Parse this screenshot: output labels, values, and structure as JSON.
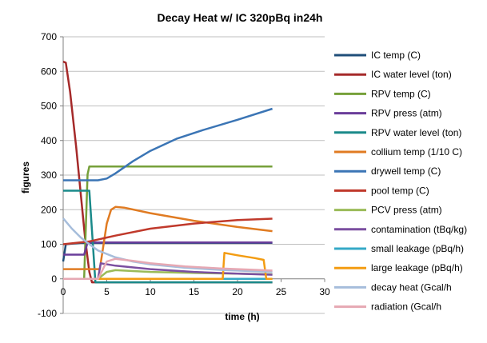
{
  "chart_data": {
    "type": "line",
    "title": "Decay Heat w/ IC   320pBq in24h",
    "xlabel": "time (h)",
    "ylabel": "figures",
    "xlim": [
      0,
      30
    ],
    "ylim": [
      -100,
      700
    ],
    "xticks": [
      "0",
      "5",
      "10",
      "15",
      "20",
      "25",
      "30"
    ],
    "yticks": [
      "-100",
      "0",
      "100",
      "200",
      "300",
      "400",
      "500",
      "600",
      "700"
    ],
    "xtick_values": [
      0,
      5,
      10,
      15,
      20,
      25,
      30
    ],
    "ytick_values": [
      -100,
      0,
      100,
      200,
      300,
      400,
      500,
      600,
      700
    ],
    "grid": "horizontal major",
    "legend_position": "right",
    "series": [
      {
        "name": "IC temp (C)",
        "color": "#1f4e79",
        "points": [
          [
            0,
            50
          ],
          [
            0.3,
            100
          ],
          [
            2,
            104
          ],
          [
            5,
            104
          ],
          [
            10,
            104
          ],
          [
            15,
            104
          ],
          [
            20,
            104
          ],
          [
            24,
            104
          ]
        ]
      },
      {
        "name": "IC water level (ton)",
        "color": "#a52a2a",
        "points": [
          [
            0,
            628
          ],
          [
            0.3,
            625
          ],
          [
            0.8,
            540
          ],
          [
            1.5,
            380
          ],
          [
            2,
            250
          ],
          [
            2.5,
            120
          ],
          [
            3,
            20
          ],
          [
            3.3,
            -10
          ],
          [
            24,
            -10
          ]
        ]
      },
      {
        "name": "RPV temp (C)",
        "color": "#76a03a",
        "points": [
          [
            0,
            0
          ],
          [
            2.4,
            0
          ],
          [
            2.8,
            302
          ],
          [
            3,
            325
          ],
          [
            10,
            325
          ],
          [
            20,
            325
          ],
          [
            24,
            325
          ]
        ]
      },
      {
        "name": "RPV press (atm)",
        "color": "#6a3d9a",
        "points": [
          [
            0,
            70
          ],
          [
            2.4,
            70
          ],
          [
            2.8,
            105
          ],
          [
            3,
            105
          ],
          [
            24,
            105
          ]
        ]
      },
      {
        "name": "RPV water level (ton)",
        "color": "#1a8a8a",
        "points": [
          [
            0,
            255
          ],
          [
            3,
            255
          ],
          [
            3.7,
            -10
          ],
          [
            24,
            -10
          ]
        ]
      },
      {
        "name": "collium temp (1/10 C)",
        "color": "#e07b22",
        "points": [
          [
            0,
            28
          ],
          [
            3,
            28
          ],
          [
            4.2,
            28
          ],
          [
            5,
            160
          ],
          [
            5.5,
            200
          ],
          [
            6,
            208
          ],
          [
            7,
            206
          ],
          [
            10,
            190
          ],
          [
            15,
            168
          ],
          [
            20,
            150
          ],
          [
            24,
            138
          ]
        ]
      },
      {
        "name": "drywell temp (C)",
        "color": "#3b75b5",
        "points": [
          [
            0,
            285
          ],
          [
            4,
            285
          ],
          [
            5,
            290
          ],
          [
            6,
            305
          ],
          [
            8,
            340
          ],
          [
            10,
            370
          ],
          [
            13,
            405
          ],
          [
            16,
            430
          ],
          [
            20,
            460
          ],
          [
            24,
            492
          ]
        ]
      },
      {
        "name": "pool temp (C)",
        "color": "#c0392b",
        "points": [
          [
            0,
            100
          ],
          [
            3,
            108
          ],
          [
            6,
            125
          ],
          [
            10,
            145
          ],
          [
            15,
            160
          ],
          [
            20,
            170
          ],
          [
            24,
            174
          ]
        ]
      },
      {
        "name": "PCV press (atm)",
        "color": "#9bbb59",
        "points": [
          [
            0,
            0
          ],
          [
            4,
            0
          ],
          [
            5,
            20
          ],
          [
            6,
            25
          ],
          [
            10,
            20
          ],
          [
            15,
            17
          ],
          [
            20,
            15
          ],
          [
            24,
            13
          ]
        ]
      },
      {
        "name": "contamination (tBq/kg)",
        "color": "#7b4fa0",
        "points": [
          [
            0,
            0
          ],
          [
            4,
            0
          ],
          [
            4.3,
            45
          ],
          [
            6,
            38
          ],
          [
            10,
            28
          ],
          [
            15,
            20
          ],
          [
            20,
            15
          ],
          [
            24,
            12
          ]
        ]
      },
      {
        "name": "small leakage (pBq/h)",
        "color": "#35a9c7",
        "points": [
          [
            0,
            0
          ],
          [
            24,
            0
          ]
        ]
      },
      {
        "name": "large leakage (pBq/h)",
        "color": "#f39c12",
        "points": [
          [
            0,
            0
          ],
          [
            18.3,
            0
          ],
          [
            18.5,
            75
          ],
          [
            20,
            68
          ],
          [
            22,
            60
          ],
          [
            23,
            55
          ],
          [
            23.3,
            0
          ],
          [
            24,
            0
          ]
        ]
      },
      {
        "name": "decay heat (Gcal/h",
        "color": "#a6bddb",
        "points": [
          [
            0,
            175
          ],
          [
            1,
            145
          ],
          [
            2,
            120
          ],
          [
            3,
            100
          ],
          [
            4,
            82
          ],
          [
            6,
            62
          ],
          [
            8,
            50
          ],
          [
            10,
            42
          ],
          [
            14,
            32
          ],
          [
            18,
            26
          ],
          [
            24,
            20
          ]
        ]
      },
      {
        "name": "radiation (Gcal/h",
        "color": "#e6a8b3",
        "points": [
          [
            0,
            0
          ],
          [
            4,
            0
          ],
          [
            5,
            50
          ],
          [
            6,
            58
          ],
          [
            8,
            52
          ],
          [
            10,
            45
          ],
          [
            14,
            36
          ],
          [
            18,
            30
          ],
          [
            24,
            24
          ]
        ]
      }
    ]
  }
}
